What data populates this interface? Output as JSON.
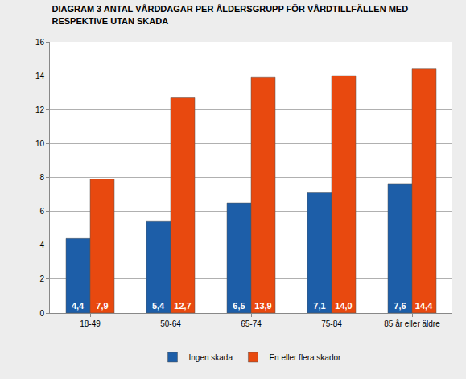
{
  "chart_data": {
    "type": "bar",
    "title": "DIAGRAM 3 ANTAL VÅRDDAGAR PER ÅLDERSGRUPP FÖR VÅRDTILLFÄLLEN MED\nRESPEKTIVE UTAN SKADA",
    "categories": [
      "18-49",
      "50-64",
      "65-74",
      "75-84",
      "85 år eller äldre"
    ],
    "series": [
      {
        "name": "Ingen skada",
        "color": "#1d5ea8",
        "values": [
          4.4,
          5.4,
          6.5,
          7.1,
          7.6
        ],
        "value_labels": [
          "4,4",
          "5,4",
          "6,5",
          "7,1",
          "7,6"
        ]
      },
      {
        "name": "En eller flera skador",
        "color": "#e8490f",
        "values": [
          7.9,
          12.7,
          13.9,
          14.0,
          14.4
        ],
        "value_labels": [
          "7,9",
          "12,7",
          "13,9",
          "14,0",
          "14,4"
        ]
      }
    ],
    "ylim": [
      0,
      16
    ],
    "yticks": [
      0,
      2,
      4,
      6,
      8,
      10,
      12,
      14,
      16
    ],
    "grid": true,
    "legend": "bottom",
    "data_labels": true
  }
}
